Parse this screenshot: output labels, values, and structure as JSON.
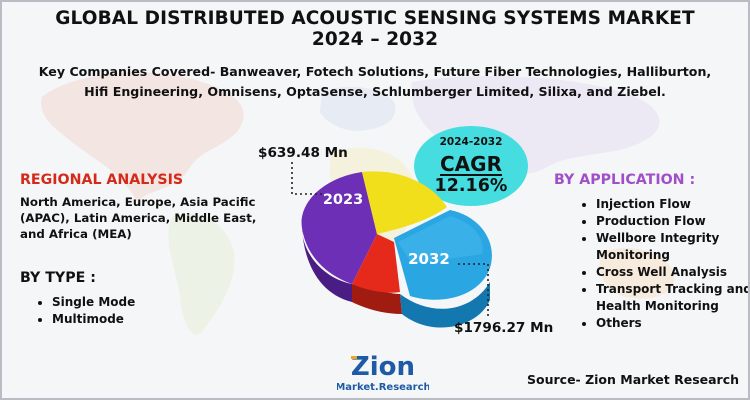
{
  "header": {
    "title_line1": "GLOBAL DISTRIBUTED ACOUSTIC SENSING SYSTEMS MARKET",
    "title_line2": "2024 – 2032",
    "companies": "Key Companies Covered- Banweaver, Fotech Solutions, Future Fiber Technologies, Halliburton, Hifi Engineering, Omnisens, OptaSense, Schlumberger Limited, Silixa, and Ziebel."
  },
  "regional": {
    "heading": "REGIONAL ANALYSIS",
    "text": "North America, Europe, Asia Pacific (APAC), Latin America, Middle East, and Africa (MEA)"
  },
  "by_type": {
    "heading": "BY TYPE :",
    "items": [
      "Single Mode",
      "Multimode"
    ]
  },
  "by_application": {
    "heading": "BY APPLICATION :",
    "items": [
      "Injection Flow",
      "Production Flow",
      "Wellbore Integrity Monitoring",
      "Cross Well Analysis",
      "Transport Tracking and Health Monitoring",
      "Others"
    ]
  },
  "cagr": {
    "period": "2024-2032",
    "label": "CAGR",
    "value": "12.16%"
  },
  "chart_data": {
    "type": "pie",
    "title": "",
    "points": [
      {
        "year": "2023",
        "label": "$639.48 Mn",
        "value": 639.48
      },
      {
        "year": "2032",
        "label": "$1796.27 Mn",
        "value": 1796.27
      }
    ]
  },
  "logo": {
    "word": "Zion",
    "tagline": "Market.Research"
  },
  "source": "Source- Zion Market Research",
  "colors": {
    "purple_slice": "#6c2fb5",
    "yellow_slice": "#f2df1b",
    "red_slice": "#e52a1c",
    "blue_slice": "#2aa6e2",
    "cagr_bg": "#46dde0",
    "heading_red": "#d42a1a",
    "heading_purple": "#a14fc9"
  }
}
